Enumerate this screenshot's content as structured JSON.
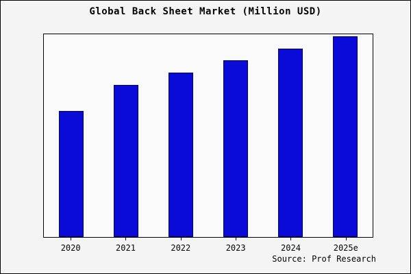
{
  "chart_data": {
    "type": "bar",
    "title": "Global Back Sheet Market (Million USD)",
    "categories": [
      "2020",
      "2021",
      "2022",
      "2023",
      "2024",
      "2025e"
    ],
    "values": [
      62,
      75,
      81,
      87,
      93,
      99
    ],
    "value_note": "no numeric y-axis is shown in the figure; values are estimated relative bar heights as % of plot height",
    "xlabel": "",
    "ylabel": "",
    "ylim": [
      0,
      100
    ],
    "grid": false,
    "legend": false,
    "bar_color": "#0b0bd8",
    "bar_edge_color": "#000060",
    "source": "Source: Prof Research"
  }
}
